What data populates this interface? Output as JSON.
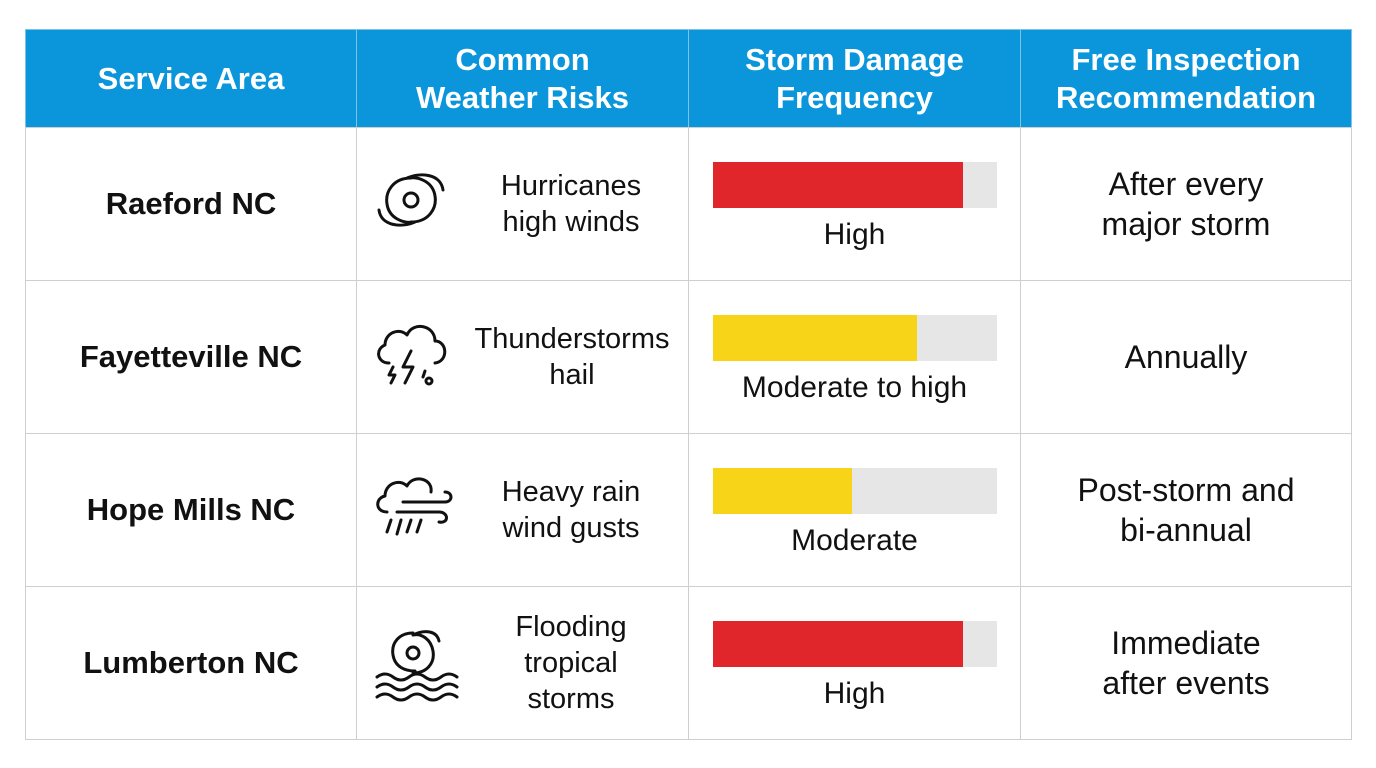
{
  "table": {
    "header_color": "#0b96db",
    "headers": [
      [
        "Service Area"
      ],
      [
        "Common",
        "Weather Risks"
      ],
      [
        "Storm Damage",
        "Frequency"
      ],
      [
        "Free Inspection",
        "Recommendation"
      ]
    ],
    "rows": [
      {
        "area": "Raeford NC",
        "icon": "hurricane",
        "risks": [
          "Hurricanes",
          "high winds"
        ],
        "frequency": {
          "level": 88,
          "color": "#e0262b",
          "label": "High"
        },
        "recommendation": [
          "After every",
          "major storm"
        ]
      },
      {
        "area": "Fayetteville NC",
        "icon": "thunderstorm",
        "risks": [
          "Thunderstorms",
          "hail"
        ],
        "frequency": {
          "level": 72,
          "color": "#f7d418",
          "label": "Moderate to high"
        },
        "recommendation": [
          "Annually"
        ]
      },
      {
        "area": "Hope Mills NC",
        "icon": "rain-wind",
        "risks": [
          "Heavy rain",
          "wind gusts"
        ],
        "frequency": {
          "level": 49,
          "color": "#f7d418",
          "label": "Moderate"
        },
        "recommendation": [
          "Post-storm and",
          "bi-annual"
        ]
      },
      {
        "area": "Lumberton NC",
        "icon": "flood",
        "risks": [
          "Flooding",
          "tropical",
          "storms"
        ],
        "frequency": {
          "level": 88,
          "color": "#e0262b",
          "label": "High"
        },
        "recommendation": [
          "Immediate",
          "after events"
        ]
      }
    ]
  }
}
